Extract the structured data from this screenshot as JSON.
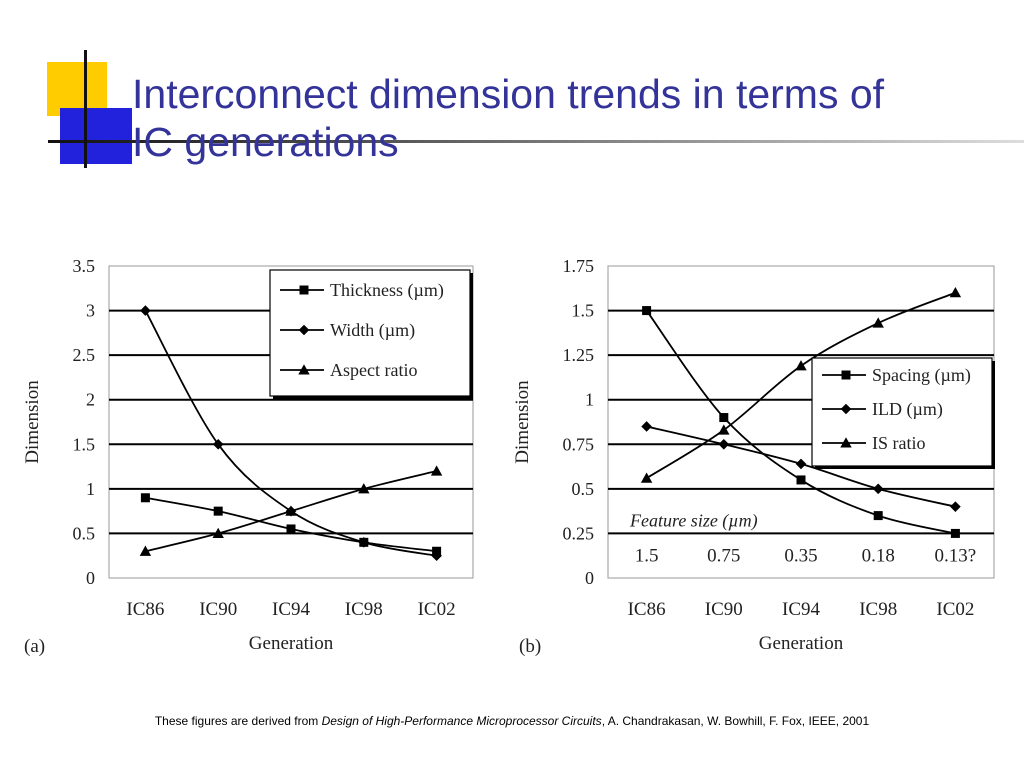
{
  "slide": {
    "title_line1": "Interconnect dimension trends in terms of",
    "title_line2": "IC generations",
    "footnote_prefix": "These figures are derived from",
    "footnote_book": "Design of High-Performance Microprocessor Circuits",
    "footnote_suffix": ", A. Chandrakasan, W. Bowhill, F. Fox, IEEE, 2001"
  },
  "chart_data": [
    {
      "type": "line",
      "panel_label": "(a)",
      "xlabel": "Generation",
      "ylabel": "Dimension",
      "categories": [
        "IC86",
        "IC90",
        "IC94",
        "IC98",
        "IC02"
      ],
      "ylim": [
        0,
        3.5
      ],
      "yticks": [
        "0",
        "0.5",
        "1",
        "1.5",
        "2",
        "2.5",
        "3",
        "3.5"
      ],
      "grid": "horizontal",
      "legend_position": "top-right",
      "series": [
        {
          "name": "Thickness (µm)",
          "marker": "square",
          "values": [
            0.9,
            0.75,
            0.55,
            0.4,
            0.3
          ]
        },
        {
          "name": "Width (µm)",
          "marker": "diamond",
          "values": [
            3.0,
            1.5,
            0.75,
            0.4,
            0.25
          ]
        },
        {
          "name": "Aspect ratio",
          "marker": "triangle",
          "values": [
            0.3,
            0.5,
            0.75,
            1.0,
            1.2
          ]
        }
      ]
    },
    {
      "type": "line",
      "panel_label": "(b)",
      "xlabel": "Generation",
      "ylabel": "Dimension",
      "categories": [
        "IC86",
        "IC90",
        "IC94",
        "IC98",
        "IC02"
      ],
      "ylim": [
        0,
        1.75
      ],
      "yticks": [
        "0",
        "0.25",
        "0.5",
        "0.75",
        "1",
        "1.25",
        "1.5",
        "1.75"
      ],
      "grid": "horizontal",
      "legend_position": "right",
      "feature_size_label": "Feature size (µm)",
      "feature_sizes": [
        "1.5",
        "0.75",
        "0.35",
        "0.18",
        "0.13?"
      ],
      "series": [
        {
          "name": "Spacing (µm)",
          "marker": "square",
          "values": [
            1.5,
            0.9,
            0.55,
            0.35,
            0.25
          ]
        },
        {
          "name": "ILD (µm)",
          "marker": "diamond",
          "values": [
            0.85,
            0.75,
            0.64,
            0.5,
            0.4
          ]
        },
        {
          "name": "IS ratio",
          "marker": "triangle",
          "values": [
            0.56,
            0.83,
            1.19,
            1.43,
            1.6
          ]
        }
      ]
    }
  ]
}
